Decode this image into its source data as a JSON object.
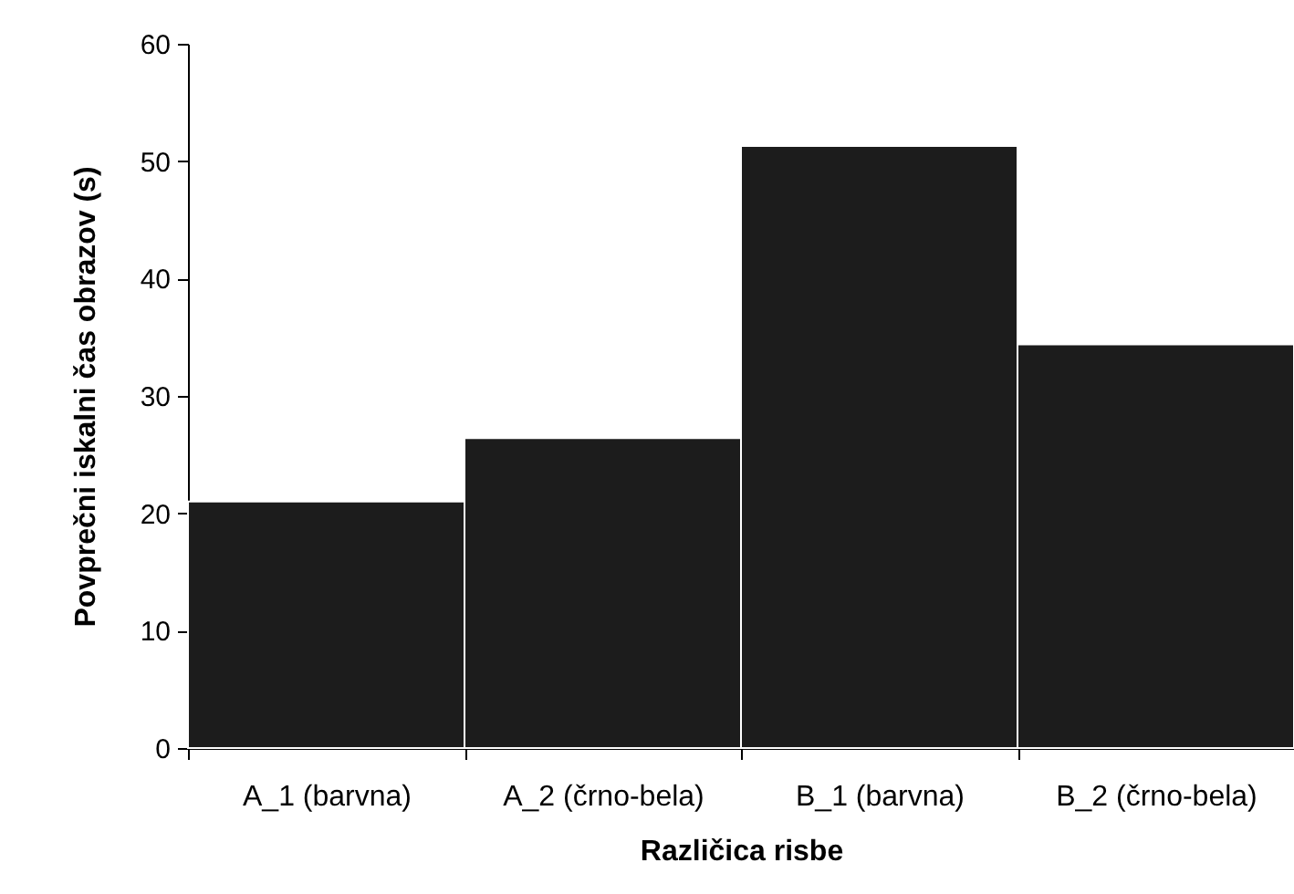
{
  "chart_data": {
    "type": "bar",
    "xlabel": "Različica risbe",
    "ylabel": "Povprečni iskalni čas obrazov (s)",
    "categories": [
      "A_1 (barvna)",
      "A_2 (črno-bela)",
      "B_1 (barvna)",
      "B_2 (črno-bela)"
    ],
    "values": [
      21,
      26.4,
      51.3,
      34.4
    ],
    "color": "#1c1c1c",
    "ylim": [
      0,
      60
    ],
    "yticks": [
      0,
      10,
      20,
      30,
      40,
      50,
      60
    ],
    "grid": false,
    "legend": false
  }
}
